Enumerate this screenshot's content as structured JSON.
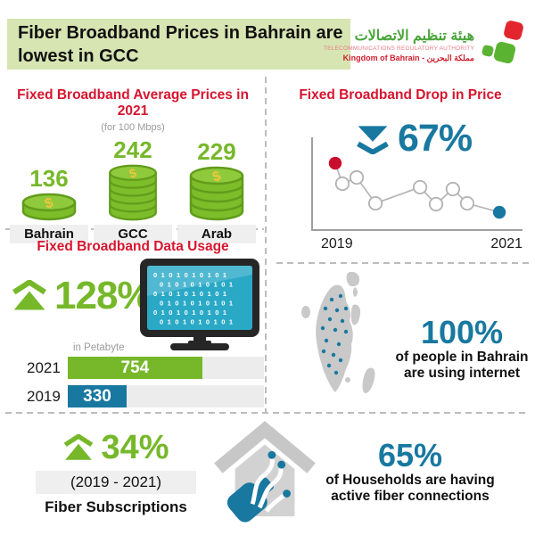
{
  "header": {
    "title_line1": "Fiber Broadband Prices in Bahrain are",
    "title_line2": "lowest in GCC"
  },
  "logo": {
    "arabic_title": "هيئة تنظيم الاتصالات",
    "english_authority": "TELECOMMUNICATIONS REGULATORY AUTHORITY",
    "kingdom_line": "Kingdom of Bahrain - مملكة البحرين"
  },
  "sections": {
    "prices": {
      "heading": "Fixed Broadband Average Prices in 2021",
      "subheading": "(for 100 Mbps)",
      "stacks": [
        {
          "label": "Bahrain",
          "value": "136"
        },
        {
          "label": "GCC",
          "value": "242"
        },
        {
          "label": "Arab",
          "value": "229"
        }
      ]
    },
    "drop": {
      "heading": "Fixed Broadband Drop in Price",
      "stat": "67%",
      "year_start": "2019",
      "year_end": "2021"
    },
    "usage": {
      "heading": "Fixed Broadband Data Usage",
      "stat": "128%",
      "unit_label": "in Petabyte",
      "bars": [
        {
          "year": "2021",
          "value": "754"
        },
        {
          "year": "2019",
          "value": "330"
        }
      ]
    },
    "internet": {
      "stat": "100%",
      "line1": "of people in Bahrain",
      "line2": "are using internet"
    },
    "fiber_subscriptions": {
      "stat": "34%",
      "period": "(2019 - 2021)",
      "label": "Fiber Subscriptions"
    },
    "households": {
      "stat": "65%",
      "line1": "of Households are having",
      "line2": "active fiber connections"
    }
  },
  "monitor": {
    "binary_row": "0 1 0 1 0 1 0 1 0 1",
    "rows": 6
  },
  "map": {
    "dots": [
      [
        40,
        34
      ],
      [
        50,
        30
      ],
      [
        33,
        44
      ],
      [
        46,
        46
      ],
      [
        56,
        44
      ],
      [
        38,
        56
      ],
      [
        52,
        58
      ],
      [
        30,
        66
      ],
      [
        44,
        68
      ],
      [
        56,
        70
      ],
      [
        34,
        80
      ],
      [
        48,
        84
      ],
      [
        31,
        92
      ],
      [
        42,
        96
      ],
      [
        50,
        102
      ],
      [
        37,
        108
      ],
      [
        45,
        116
      ]
    ]
  },
  "chart_data": [
    {
      "id": "avg_prices_2021",
      "type": "bar",
      "title": "Fixed Broadband Average Prices in 2021",
      "subtitle": "(for 100 Mbps)",
      "categories": [
        "Bahrain",
        "GCC",
        "Arab"
      ],
      "values": [
        136,
        242,
        229
      ]
    },
    {
      "id": "price_drop",
      "type": "line",
      "title": "Fixed Broadband Drop in Price",
      "annotation": "▼ 67%",
      "x_ticks": [
        "2019",
        "2021"
      ],
      "points_norm": [
        [
          0.11,
          0.279
        ],
        [
          0.144,
          0.5
        ],
        [
          0.212,
          0.433
        ],
        [
          0.301,
          0.712
        ],
        [
          0.513,
          0.538
        ],
        [
          0.589,
          0.721
        ],
        [
          0.669,
          0.558
        ],
        [
          0.737,
          0.712
        ],
        [
          0.89,
          0.808
        ]
      ],
      "start_color": "#c8102e",
      "end_color": "#1878a0"
    },
    {
      "id": "data_usage",
      "type": "bar",
      "title": "Fixed Broadband Data Usage",
      "unit": "Petabyte",
      "categories": [
        "2021",
        "2019"
      ],
      "values": [
        754,
        330
      ],
      "scale_max": 1100,
      "colors": [
        "#76b82a",
        "#1878a0"
      ]
    }
  ],
  "colors": {
    "green": "#76b82a",
    "teal": "#1878a0",
    "heading_red": "#d6152f",
    "header_bg": "#d7e5b2",
    "map_gray": "#c9c9c9",
    "screen_teal": "#2aa9c7",
    "monitor_dark": "#262626",
    "coin_green": "#7cbd2a",
    "coin_dark": "#619c1b",
    "coin_top": "#8fc93c",
    "coin_gold": "#eec63e",
    "chart_start_dot": "#c8102e"
  }
}
